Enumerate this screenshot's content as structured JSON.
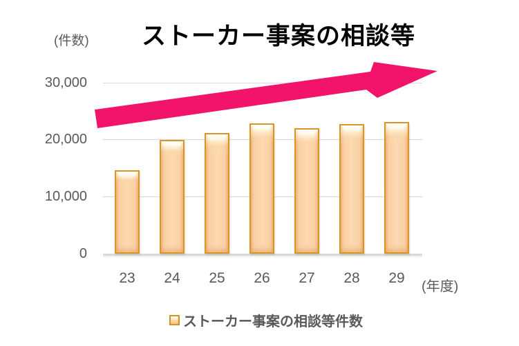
{
  "chart_data": {
    "type": "bar",
    "title": "ストーカー事案の相談等",
    "y_axis_unit_label": "(件数)",
    "x_axis_unit_label": "(年度)",
    "categories": [
      "23",
      "24",
      "25",
      "26",
      "27",
      "28",
      "29"
    ],
    "series": [
      {
        "name": "ストーカー事案の相談等件数",
        "values": [
          14618,
          19920,
          21089,
          22823,
          21968,
          22737,
          23079
        ]
      }
    ],
    "ylim": [
      0,
      30000
    ],
    "yticks": [
      0,
      10000,
      20000,
      30000
    ],
    "ytick_labels": [
      "0",
      "10,000",
      "20,000",
      "30,000"
    ],
    "grid": true,
    "legend_position": "bottom",
    "legend_entries": [
      "ストーカー事案の相談等件数"
    ],
    "annotations": [
      {
        "type": "block-arrow",
        "meaning": "rising trend",
        "direction": "up-right",
        "color": "#f2136b"
      }
    ]
  },
  "colors": {
    "arrow": "#f2136b",
    "bar_fill": "#fbd0a4",
    "bar_border": "#db9526",
    "gridline": "#d9d9d9",
    "axis_text": "#595959",
    "title_text": "#000000"
  }
}
